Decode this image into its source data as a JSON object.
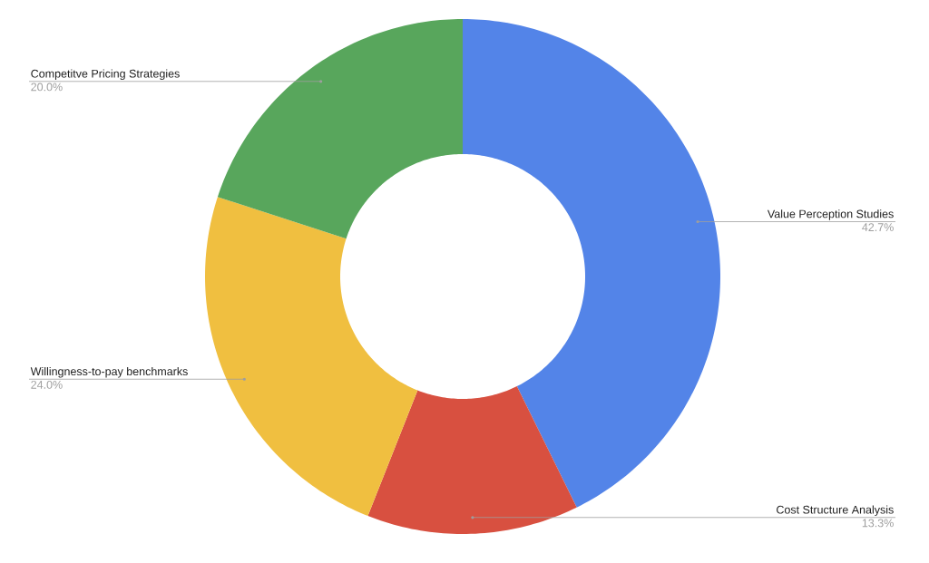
{
  "chart_data": {
    "type": "donut",
    "categories": [
      "Value Perception Studies",
      "Cost Structure Analysis",
      "Willingness-to-pay benchmarks",
      "Competitve Pricing Strategies"
    ],
    "values": [
      42.7,
      13.3,
      24.0,
      20.0
    ],
    "value_labels": [
      "42.7%",
      "13.3%",
      "24.0%",
      "20.0%"
    ],
    "colors": [
      "#5384e8",
      "#d85040",
      "#f0bf40",
      "#58a65c"
    ]
  }
}
